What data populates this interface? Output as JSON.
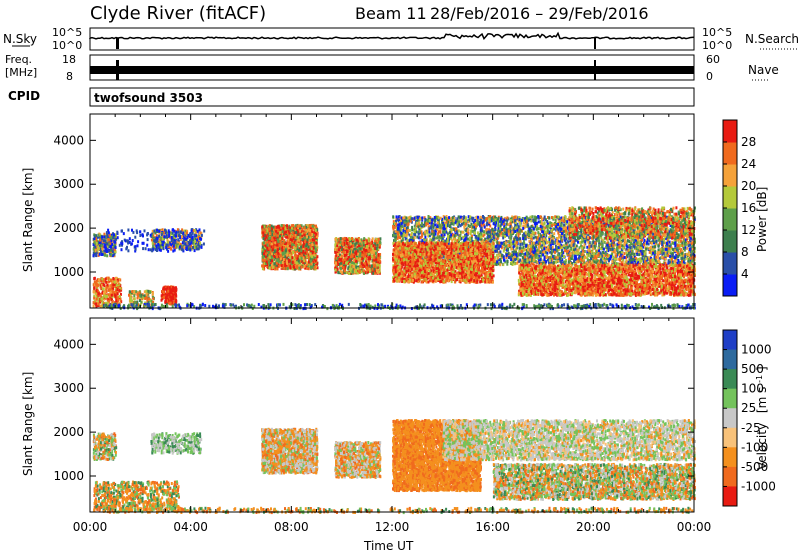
{
  "header": {
    "station": "Clyde River (fitACF)",
    "beam": "Beam 11",
    "date_range": "28/Feb/2016 – 29/Feb/2016"
  },
  "strips": {
    "nsky_label": "N.Sky",
    "nsky_ticks": [
      "10^5",
      "10^0"
    ],
    "nsearch_label": "N.Search",
    "freq_label_1": "Freq.",
    "freq_label_2": "[MHz]",
    "freq_ticks": [
      "18",
      "8"
    ],
    "nave_label": "Nave",
    "nave_ticks": [
      "60",
      "0"
    ],
    "cpid_label": "CPID",
    "cpid_value": "twofsound  3503"
  },
  "chart_data": [
    {
      "type": "heatmap",
      "ylabel": "Slant Range [km]",
      "yticks": [
        "1000",
        "2000",
        "3000",
        "4000"
      ],
      "xticks": [
        "00:00",
        "04:00",
        "08:00",
        "12:00",
        "16:00",
        "20:00",
        "00:00"
      ],
      "colorbar": {
        "label": "Power [dB]",
        "ticks": [
          "4",
          "8",
          "12",
          "16",
          "20",
          "24",
          "28"
        ],
        "colors": [
          "#0a1df5",
          "#2a4fa8",
          "#3d7f4e",
          "#5e9f4a",
          "#b4c93a",
          "#f5a23a",
          "#f06a1e",
          "#e81b12"
        ]
      }
    },
    {
      "type": "heatmap",
      "ylabel": "Slant Range [km]",
      "yticks": [
        "1000",
        "2000",
        "3000",
        "4000"
      ],
      "xticks": [
        "00:00",
        "04:00",
        "08:00",
        "12:00",
        "16:00",
        "20:00",
        "00:00"
      ],
      "xlabel": "Time UT",
      "colorbar": {
        "label": "Velocity",
        "unit": "[m s",
        "unit_exp": "-1",
        "unit_close": "]",
        "ticks": [
          "1000",
          "500",
          "100",
          "25",
          "-25",
          "-100",
          "-500",
          "-1000"
        ],
        "colors": [
          "#1f3fc6",
          "#2e6a9e",
          "#3a8a55",
          "#74c35c",
          "#c8c8c8",
          "#f8c27a",
          "#f4901e",
          "#f06a1e",
          "#e81b12"
        ]
      }
    }
  ]
}
